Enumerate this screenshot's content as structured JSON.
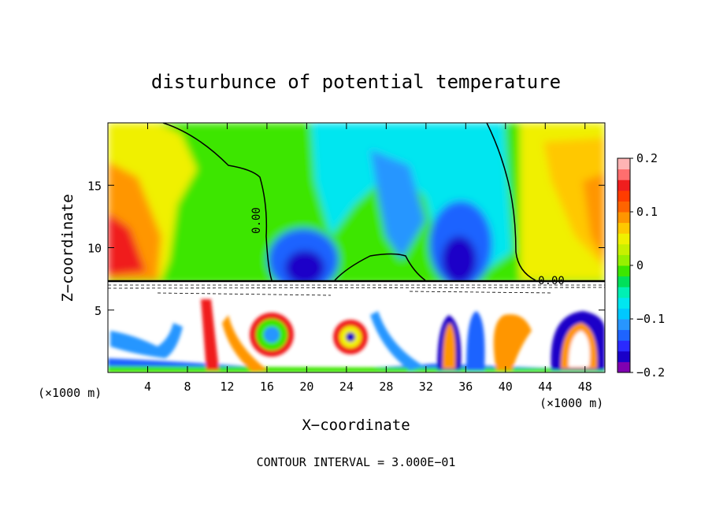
{
  "chart_data": {
    "type": "heatmap",
    "title": "disturbunce of potential temperature",
    "xlabel": "X−coordinate",
    "ylabel": "Z−coordinate",
    "x_unit_left": "(×1000 m)",
    "x_unit_right": "(×1000 m)",
    "footer": "CONTOUR INTERVAL = 3.000E−01",
    "xlim": [
      0,
      50
    ],
    "ylim": [
      0,
      20
    ],
    "x_ticks": [
      4,
      8,
      12,
      16,
      20,
      24,
      28,
      32,
      36,
      40,
      44,
      48
    ],
    "y_ticks": [
      5,
      10,
      15
    ],
    "colorbar": {
      "range": [
        -0.2,
        0.2
      ],
      "tick_values": [
        0.2,
        0.1,
        0,
        -0.1,
        -0.2
      ],
      "tick_labels": [
        "0.2",
        "0.1",
        "0",
        "−0.1",
        "−0.2"
      ],
      "colors": [
        "#7f00b0",
        "#1a00c8",
        "#2a2aff",
        "#1e64ff",
        "#2896ff",
        "#00c8ff",
        "#00e6f0",
        "#00f0b4",
        "#00e05a",
        "#3ce600",
        "#96f000",
        "#c8f000",
        "#f0f000",
        "#ffc800",
        "#ff9600",
        "#ff6400",
        "#ff3c00",
        "#f01e1e",
        "#ff6e6e",
        "#ffb4b4"
      ]
    },
    "contour_labels": [
      "0.00",
      "0.00"
    ],
    "features": [
      {
        "name": "upper-left warm anomaly",
        "x": 3,
        "z": 11,
        "value": 0.15
      },
      {
        "name": "cold dome",
        "x": 19,
        "z": 8.5,
        "value": -0.2
      },
      {
        "name": "cold dome",
        "x": 35,
        "z": 9,
        "value": -0.2
      },
      {
        "name": "cold plume",
        "x": 28,
        "z": 14,
        "value": -0.1
      },
      {
        "name": "warm region",
        "x": 45,
        "z": 14,
        "value": 0.1
      },
      {
        "name": "vortex",
        "x": 16,
        "z": 3,
        "value": -0.1
      },
      {
        "name": "vortex",
        "x": 24.5,
        "z": 2.8,
        "value": -0.15
      }
    ]
  }
}
